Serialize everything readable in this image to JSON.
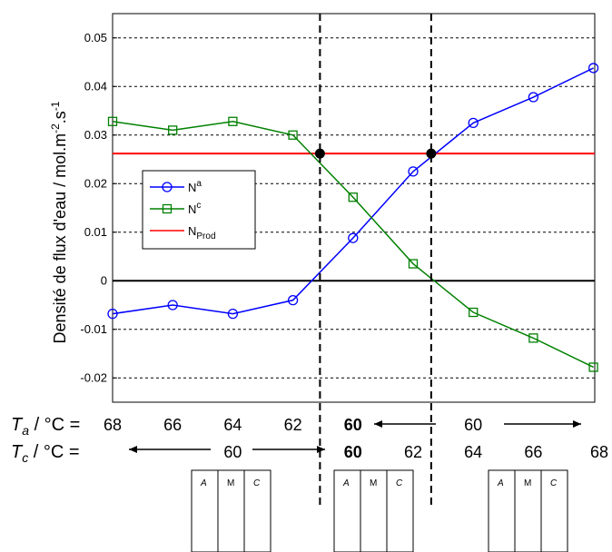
{
  "chart_data": {
    "type": "line",
    "title": "",
    "ylabel": "Densité de flux d'eau / mol.m",
    "ylabel_sup1": "-2",
    "ylabel_mid": ".s",
    "ylabel_sup2": "-1",
    "ylim": [
      -0.025,
      0.055
    ],
    "yticks": [
      -0.02,
      -0.01,
      0,
      0.01,
      0.02,
      0.03,
      0.04,
      0.05
    ],
    "ytick_labels": [
      "-0.02",
      "-0.01",
      "0",
      "0.01",
      "0.02",
      "0.03",
      "0.04",
      "0.05"
    ],
    "x_count": 10,
    "series": [
      {
        "name": "N",
        "sup": "a",
        "sub": "",
        "color": "#0000ff",
        "marker": "circle",
        "values": [
          -0.0068,
          -0.005,
          -0.0068,
          -0.004,
          0.0088,
          0.0225,
          0.0325,
          0.0378,
          0.0438
        ]
      },
      {
        "name": "N",
        "sup": "c",
        "sub": "",
        "color": "#008000",
        "marker": "square",
        "values": [
          0.0328,
          0.031,
          0.0328,
          0.03,
          0.0172,
          0.0035,
          -0.0065,
          -0.0118,
          -0.0178
        ]
      }
    ],
    "series_x": [
      0,
      1,
      2,
      3,
      4,
      5,
      6,
      7,
      8,
      9
    ],
    "hline": {
      "name": "N",
      "sub": "Prod",
      "value": 0.0262,
      "color": "#ff0000"
    },
    "zero_line": {
      "value": 0,
      "color": "#000000"
    },
    "intersections": [
      {
        "x": 3.45,
        "y": 0.0262
      },
      {
        "x": 5.3,
        "y": 0.0262
      }
    ],
    "dashed_verticals": [
      3.45,
      5.3
    ],
    "legend_position": "middle-left",
    "grid": true,
    "ta_row": {
      "label_main": "T",
      "label_sub": "a",
      "label_rest": " / °C = ",
      "values": [
        "68",
        "66",
        "64",
        "62",
        "60",
        "60"
      ],
      "value_x": [
        0,
        1,
        2,
        3,
        4,
        6
      ],
      "bold": [
        false,
        false,
        false,
        false,
        true,
        false
      ]
    },
    "tc_row": {
      "label_main": "T",
      "label_sub": "c",
      "label_rest": " / °C =",
      "values": [
        "60",
        "60",
        "62",
        "64",
        "66",
        "68"
      ],
      "value_x": [
        2,
        4,
        5,
        6,
        7,
        8
      ],
      "bold": [
        false,
        true,
        false,
        false,
        false,
        false
      ]
    },
    "schematics": [
      {
        "labels": [
          "A",
          "M",
          "C"
        ],
        "left_arrow": "right",
        "right_arrow": "right"
      },
      {
        "labels": [
          "A",
          "M",
          "C"
        ],
        "left_arrow": "left",
        "right_arrow": "right"
      },
      {
        "labels": [
          "A",
          "M",
          "C"
        ],
        "left_arrow": "left",
        "right_arrow": "left"
      }
    ]
  }
}
